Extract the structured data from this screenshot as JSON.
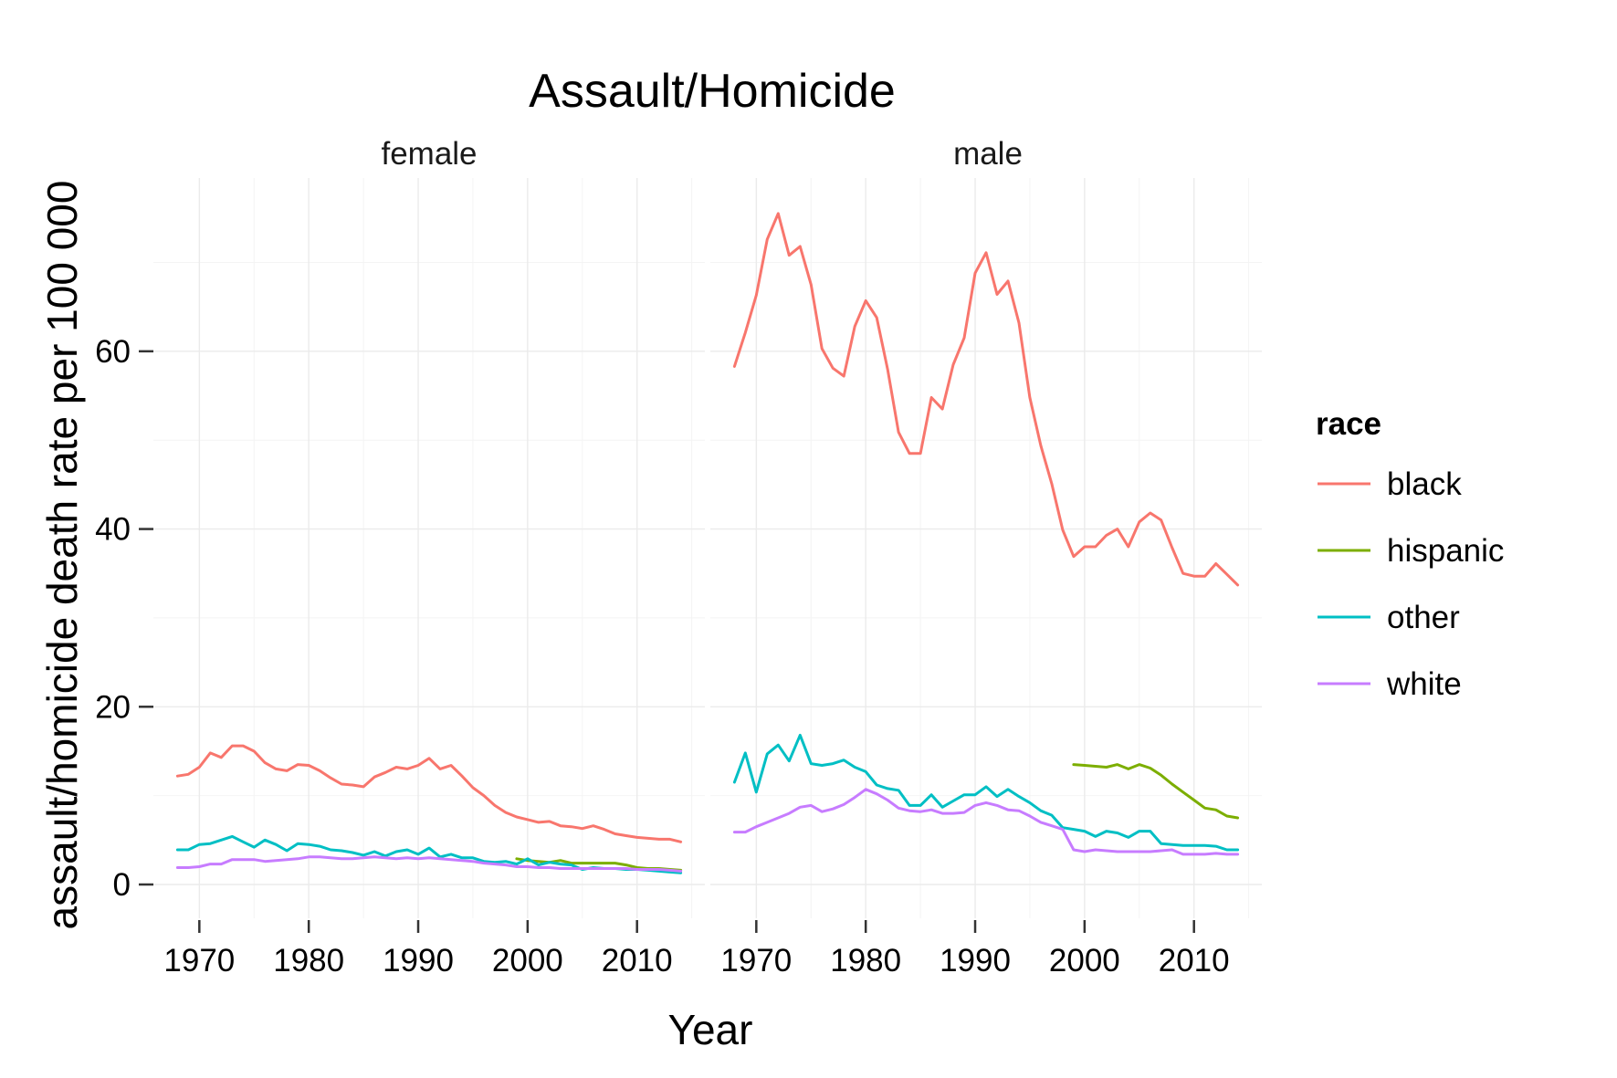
{
  "chart_data": {
    "type": "line",
    "title": "Assault/Homicide",
    "xlabel": "Year",
    "ylabel": "assault/homicide death rate per 100 000",
    "xlim": [
      1965.8,
      2016.2
    ],
    "ylim": [
      -3.8,
      79.5
    ],
    "x_ticks": [
      1970,
      1980,
      1990,
      2000,
      2010
    ],
    "x_tick_labels": [
      "1970",
      "1980",
      "1990",
      "2000",
      "2010"
    ],
    "y_ticks": [
      0,
      20,
      40,
      60
    ],
    "y_tick_labels": [
      "0",
      "20",
      "40",
      "60"
    ],
    "grid": true,
    "legend": {
      "title": "race",
      "position": "right",
      "entries": [
        {
          "label": "black",
          "color": "#F8766D"
        },
        {
          "label": "hispanic",
          "color": "#7CAE00"
        },
        {
          "label": "other",
          "color": "#00BFC4"
        },
        {
          "label": "white",
          "color": "#C77CFF"
        }
      ]
    },
    "panels": [
      {
        "name": "female",
        "series": [
          {
            "name": "black",
            "color": "#F8766D",
            "x": [
              1968,
              1969,
              1970,
              1971,
              1972,
              1973,
              1974,
              1975,
              1976,
              1977,
              1978,
              1979,
              1980,
              1981,
              1982,
              1983,
              1984,
              1985,
              1986,
              1987,
              1988,
              1989,
              1990,
              1991,
              1992,
              1993,
              1994,
              1995,
              1996,
              1997,
              1998,
              1999,
              2000,
              2001,
              2002,
              2003,
              2004,
              2005,
              2006,
              2007,
              2008,
              2009,
              2010,
              2011,
              2012,
              2013,
              2014
            ],
            "y": [
              12.2,
              12.4,
              13.2,
              14.8,
              14.3,
              15.6,
              15.6,
              15.0,
              13.7,
              13.0,
              12.8,
              13.5,
              13.4,
              12.8,
              12.0,
              11.3,
              11.2,
              11.0,
              12.1,
              12.6,
              13.2,
              13.0,
              13.4,
              14.2,
              13.0,
              13.4,
              12.2,
              10.9,
              10.0,
              8.9,
              8.1,
              7.6,
              7.3,
              7.0,
              7.1,
              6.6,
              6.5,
              6.3,
              6.6,
              6.2,
              5.7,
              5.5,
              5.3,
              5.2,
              5.1,
              5.1,
              4.8
            ]
          },
          {
            "name": "hispanic",
            "color": "#7CAE00",
            "x": [
              1999,
              2000,
              2001,
              2002,
              2003,
              2004,
              2005,
              2006,
              2007,
              2008,
              2009,
              2010,
              2011,
              2012,
              2013,
              2014
            ],
            "y": [
              2.9,
              2.7,
              2.6,
              2.5,
              2.7,
              2.4,
              2.4,
              2.4,
              2.4,
              2.4,
              2.2,
              1.9,
              1.8,
              1.8,
              1.7,
              1.6
            ]
          },
          {
            "name": "other",
            "color": "#00BFC4",
            "x": [
              1968,
              1969,
              1970,
              1971,
              1972,
              1973,
              1974,
              1975,
              1976,
              1977,
              1978,
              1979,
              1980,
              1981,
              1982,
              1983,
              1984,
              1985,
              1986,
              1987,
              1988,
              1989,
              1990,
              1991,
              1992,
              1993,
              1994,
              1995,
              1996,
              1997,
              1998,
              1999,
              2000,
              2001,
              2002,
              2003,
              2004,
              2005,
              2006,
              2007,
              2008,
              2009,
              2010,
              2011,
              2012,
              2013,
              2014
            ],
            "y": [
              3.9,
              3.9,
              4.5,
              4.6,
              5.0,
              5.4,
              4.8,
              4.2,
              5.0,
              4.5,
              3.8,
              4.6,
              4.5,
              4.3,
              3.9,
              3.8,
              3.6,
              3.3,
              3.7,
              3.2,
              3.7,
              3.9,
              3.4,
              4.1,
              3.1,
              3.4,
              3.0,
              3.0,
              2.6,
              2.5,
              2.6,
              2.3,
              2.9,
              2.2,
              2.5,
              2.3,
              2.2,
              1.7,
              1.9,
              1.8,
              1.8,
              1.7,
              1.7,
              1.6,
              1.5,
              1.4,
              1.3
            ]
          },
          {
            "name": "white",
            "color": "#C77CFF",
            "x": [
              1968,
              1969,
              1970,
              1971,
              1972,
              1973,
              1974,
              1975,
              1976,
              1977,
              1978,
              1979,
              1980,
              1981,
              1982,
              1983,
              1984,
              1985,
              1986,
              1987,
              1988,
              1989,
              1990,
              1991,
              1992,
              1993,
              1994,
              1995,
              1996,
              1997,
              1998,
              1999,
              2000,
              2001,
              2002,
              2003,
              2004,
              2005,
              2006,
              2007,
              2008,
              2009,
              2010,
              2011,
              2012,
              2013,
              2014
            ],
            "y": [
              1.9,
              1.9,
              2.0,
              2.3,
              2.3,
              2.8,
              2.8,
              2.8,
              2.6,
              2.7,
              2.8,
              2.9,
              3.1,
              3.1,
              3.0,
              2.9,
              2.9,
              3.0,
              3.1,
              3.0,
              2.9,
              3.0,
              2.9,
              3.0,
              2.9,
              2.8,
              2.7,
              2.6,
              2.4,
              2.3,
              2.2,
              2.0,
              2.0,
              1.9,
              1.9,
              1.8,
              1.8,
              1.8,
              1.8,
              1.8,
              1.8,
              1.8,
              1.7,
              1.7,
              1.7,
              1.6,
              1.5
            ]
          }
        ]
      },
      {
        "name": "male",
        "series": [
          {
            "name": "black",
            "color": "#F8766D",
            "x": [
              1968,
              1969,
              1970,
              1971,
              1972,
              1973,
              1974,
              1975,
              1976,
              1977,
              1978,
              1979,
              1980,
              1981,
              1982,
              1983,
              1984,
              1985,
              1986,
              1987,
              1988,
              1989,
              1990,
              1991,
              1992,
              1993,
              1994,
              1995,
              1996,
              1997,
              1998,
              1999,
              2000,
              2001,
              2002,
              2003,
              2004,
              2005,
              2006,
              2007,
              2008,
              2009,
              2010,
              2011,
              2012,
              2013,
              2014
            ],
            "y": [
              58.3,
              62.1,
              66.3,
              72.6,
              75.5,
              70.8,
              71.8,
              67.5,
              60.3,
              58.1,
              57.2,
              62.8,
              65.7,
              63.8,
              58.0,
              50.9,
              48.5,
              48.5,
              54.8,
              53.5,
              58.5,
              61.5,
              68.8,
              71.1,
              66.4,
              67.9,
              63.2,
              54.8,
              49.4,
              45.1,
              39.9,
              36.9,
              38.0,
              38.0,
              39.3,
              40.0,
              38.0,
              40.8,
              41.8,
              41.0,
              37.9,
              35.0,
              34.7,
              34.7,
              36.1,
              34.9,
              33.7
            ]
          },
          {
            "name": "hispanic",
            "color": "#7CAE00",
            "x": [
              1999,
              2000,
              2001,
              2002,
              2003,
              2004,
              2005,
              2006,
              2007,
              2008,
              2009,
              2010,
              2011,
              2012,
              2013,
              2014
            ],
            "y": [
              13.5,
              13.4,
              13.3,
              13.2,
              13.5,
              13.0,
              13.5,
              13.1,
              12.3,
              11.3,
              10.4,
              9.5,
              8.6,
              8.4,
              7.7,
              7.5
            ]
          },
          {
            "name": "other",
            "color": "#00BFC4",
            "x": [
              1968,
              1969,
              1970,
              1971,
              1972,
              1973,
              1974,
              1975,
              1976,
              1977,
              1978,
              1979,
              1980,
              1981,
              1982,
              1983,
              1984,
              1985,
              1986,
              1987,
              1988,
              1989,
              1990,
              1991,
              1992,
              1993,
              1994,
              1995,
              1996,
              1997,
              1998,
              1999,
              2000,
              2001,
              2002,
              2003,
              2004,
              2005,
              2006,
              2007,
              2008,
              2009,
              2010,
              2011,
              2012,
              2013,
              2014
            ],
            "y": [
              11.5,
              14.8,
              10.4,
              14.7,
              15.7,
              13.9,
              16.8,
              13.6,
              13.4,
              13.6,
              14.0,
              13.2,
              12.7,
              11.2,
              10.8,
              10.6,
              8.9,
              8.9,
              10.1,
              8.7,
              9.4,
              10.1,
              10.1,
              11.0,
              9.9,
              10.7,
              9.9,
              9.2,
              8.3,
              7.8,
              6.4,
              6.2,
              6.0,
              5.4,
              6.0,
              5.8,
              5.3,
              6.0,
              6.0,
              4.6,
              4.5,
              4.4,
              4.4,
              4.4,
              4.3,
              3.9,
              3.9
            ]
          },
          {
            "name": "white",
            "color": "#C77CFF",
            "x": [
              1968,
              1969,
              1970,
              1971,
              1972,
              1973,
              1974,
              1975,
              1976,
              1977,
              1978,
              1979,
              1980,
              1981,
              1982,
              1983,
              1984,
              1985,
              1986,
              1987,
              1988,
              1989,
              1990,
              1991,
              1992,
              1993,
              1994,
              1995,
              1996,
              1997,
              1998,
              1999,
              2000,
              2001,
              2002,
              2003,
              2004,
              2005,
              2006,
              2007,
              2008,
              2009,
              2010,
              2011,
              2012,
              2013,
              2014
            ],
            "y": [
              5.9,
              5.9,
              6.5,
              7.0,
              7.5,
              8.0,
              8.7,
              8.9,
              8.2,
              8.5,
              9.0,
              9.8,
              10.7,
              10.2,
              9.5,
              8.6,
              8.3,
              8.2,
              8.4,
              8.0,
              8.0,
              8.1,
              8.9,
              9.2,
              8.9,
              8.4,
              8.3,
              7.7,
              7.0,
              6.6,
              6.2,
              3.9,
              3.7,
              3.9,
              3.8,
              3.7,
              3.7,
              3.7,
              3.7,
              3.8,
              3.9,
              3.4,
              3.4,
              3.4,
              3.5,
              3.4,
              3.4
            ]
          }
        ]
      }
    ]
  }
}
